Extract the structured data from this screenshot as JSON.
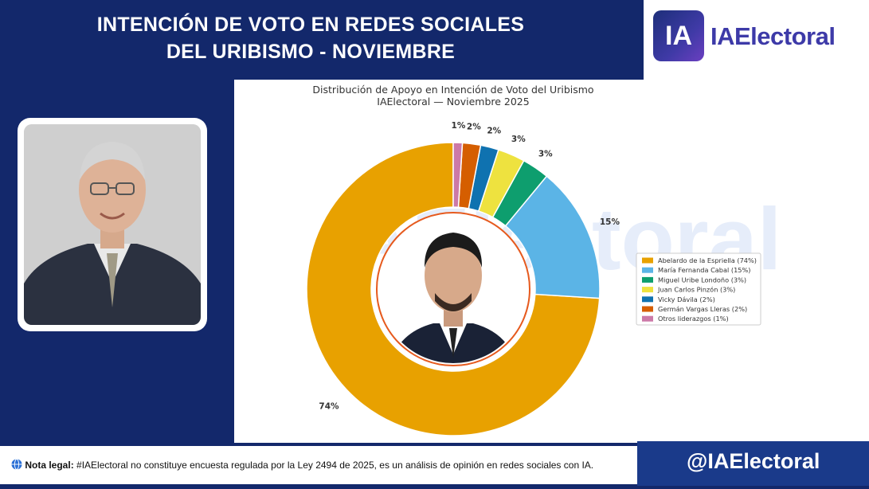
{
  "header": {
    "line1": "INTENCIÓN DE VOTO EN REDES SOCIALES",
    "line2": "DEL URIBISMO - NOVIEMBRE"
  },
  "brand": {
    "mark": "IA",
    "name": "IAElectoral"
  },
  "watermark": "IAElectoral",
  "chart_data": {
    "type": "pie",
    "variant": "donut",
    "title": "Distribución de Apoyo en Intención de Voto del Uribismo",
    "subtitle": "IAElectoral — Noviembre 2025",
    "legend_position": "right",
    "slices": [
      {
        "label": "Abelardo de la Espriella (74%)",
        "value": 74,
        "text": "74%",
        "color": "#e8a100"
      },
      {
        "label": "María Fernanda Cabal (15%)",
        "value": 15,
        "text": "15%",
        "color": "#5bb4e6"
      },
      {
        "label": "Miguel Uribe Londoño (3%)",
        "value": 3,
        "text": "3%",
        "color": "#0e9e6e"
      },
      {
        "label": "Juan Carlos Pinzón (3%)",
        "value": 3,
        "text": "3%",
        "color": "#eee23f"
      },
      {
        "label": "Vicky Dávila (2%)",
        "value": 2,
        "text": "2%",
        "color": "#0f72b0"
      },
      {
        "label": "Germán Vargas Lleras (2%)",
        "value": 2,
        "text": "2%",
        "color": "#d55e00"
      },
      {
        "label": "Otros liderazgos (1%)",
        "value": 1,
        "text": "1%",
        "color": "#cc79a7"
      }
    ]
  },
  "footer": {
    "note_label": "Nota legal:",
    "note_text": " #IAElectoral no constituye encuesta regulada por la Ley 2494 de 2025, es un análisis de opinión en redes sociales con IA.",
    "handle": "@IAElectoral"
  },
  "colors": {
    "navy": "#13286b",
    "brand_purple": "#3d3aa8",
    "footer_blue": "#1a3a8a"
  }
}
